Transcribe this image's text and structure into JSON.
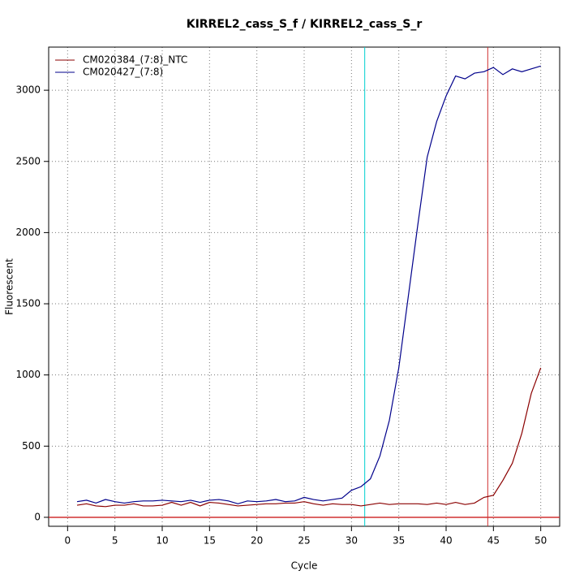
{
  "chart_data": {
    "type": "line",
    "title": "KIRREL2_cass_S_f / KIRREL2_cass_S_r",
    "x_label": "Cycle",
    "y_label": "Fluorescent",
    "x": [
      1,
      2,
      3,
      4,
      5,
      6,
      7,
      8,
      9,
      10,
      11,
      12,
      13,
      14,
      15,
      16,
      17,
      18,
      19,
      20,
      21,
      22,
      23,
      24,
      25,
      26,
      27,
      28,
      29,
      30,
      31,
      32,
      33,
      34,
      35,
      36,
      37,
      38,
      39,
      40,
      41,
      42,
      43,
      44,
      45,
      46,
      47,
      48,
      49,
      50
    ],
    "series": [
      {
        "name": "CM020384_(7:8)_NTC",
        "color": "#8b0000",
        "values": [
          85,
          95,
          80,
          75,
          85,
          85,
          95,
          80,
          80,
          85,
          105,
          85,
          105,
          80,
          105,
          100,
          90,
          80,
          85,
          90,
          95,
          95,
          100,
          100,
          110,
          95,
          85,
          95,
          90,
          90,
          80,
          90,
          100,
          90,
          95,
          95,
          95,
          90,
          100,
          90,
          105,
          90,
          100,
          140,
          155,
          260,
          380,
          590,
          870,
          1050
        ]
      },
      {
        "name": "CM020427_(7:8)",
        "color": "#00008b",
        "values": [
          110,
          120,
          100,
          125,
          110,
          100,
          110,
          115,
          115,
          120,
          115,
          110,
          120,
          105,
          120,
          125,
          115,
          95,
          115,
          110,
          115,
          125,
          110,
          115,
          140,
          125,
          115,
          125,
          135,
          190,
          215,
          270,
          430,
          680,
          1050,
          1550,
          2050,
          2530,
          2780,
          2960,
          3100,
          3080,
          3120,
          3130,
          3160,
          3110,
          3150,
          3130,
          3150,
          3170
        ]
      }
    ],
    "xlim": [
      -2,
      52
    ],
    "ylim": [
      -63,
      3303
    ],
    "xticks": [
      0,
      5,
      10,
      15,
      20,
      25,
      30,
      35,
      40,
      45,
      50
    ],
    "yticks": [
      0,
      500,
      1000,
      1500,
      2000,
      2500,
      3000
    ],
    "grid": true,
    "legend": "top-left",
    "vlines": [
      {
        "x": 31.4,
        "color": "#00d0d0"
      },
      {
        "x": 44.4,
        "color": "#d03030"
      }
    ],
    "hline": {
      "y": 0,
      "color": "#d03030"
    }
  }
}
